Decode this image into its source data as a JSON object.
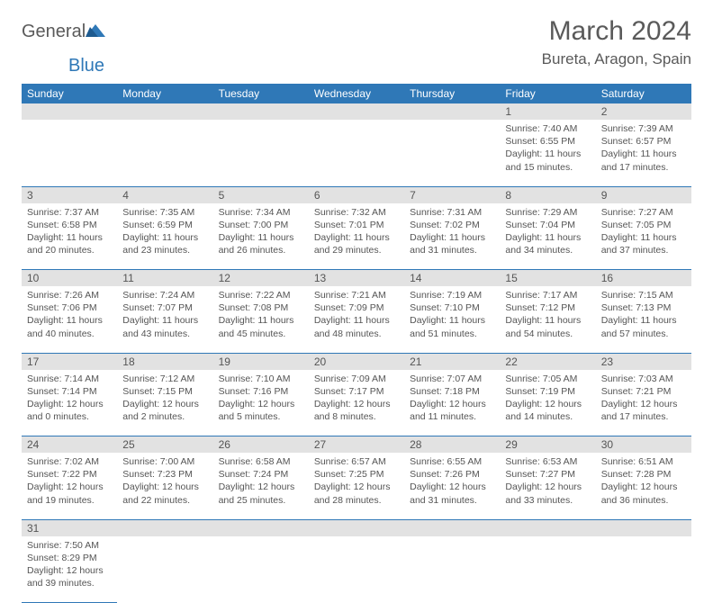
{
  "brand": {
    "part1": "General",
    "part2": "Blue"
  },
  "title": "March 2024",
  "location": "Bureta, Aragon, Spain",
  "colors": {
    "header_bg": "#2f78b7",
    "header_text": "#ffffff",
    "daynum_bg": "#e2e2e2",
    "text": "#555555",
    "border": "#2f78b7"
  },
  "weekdays": [
    "Sunday",
    "Monday",
    "Tuesday",
    "Wednesday",
    "Thursday",
    "Friday",
    "Saturday"
  ],
  "weeks": [
    [
      null,
      null,
      null,
      null,
      null,
      {
        "n": "1",
        "sr": "Sunrise: 7:40 AM",
        "ss": "Sunset: 6:55 PM",
        "d1": "Daylight: 11 hours",
        "d2": "and 15 minutes."
      },
      {
        "n": "2",
        "sr": "Sunrise: 7:39 AM",
        "ss": "Sunset: 6:57 PM",
        "d1": "Daylight: 11 hours",
        "d2": "and 17 minutes."
      }
    ],
    [
      {
        "n": "3",
        "sr": "Sunrise: 7:37 AM",
        "ss": "Sunset: 6:58 PM",
        "d1": "Daylight: 11 hours",
        "d2": "and 20 minutes."
      },
      {
        "n": "4",
        "sr": "Sunrise: 7:35 AM",
        "ss": "Sunset: 6:59 PM",
        "d1": "Daylight: 11 hours",
        "d2": "and 23 minutes."
      },
      {
        "n": "5",
        "sr": "Sunrise: 7:34 AM",
        "ss": "Sunset: 7:00 PM",
        "d1": "Daylight: 11 hours",
        "d2": "and 26 minutes."
      },
      {
        "n": "6",
        "sr": "Sunrise: 7:32 AM",
        "ss": "Sunset: 7:01 PM",
        "d1": "Daylight: 11 hours",
        "d2": "and 29 minutes."
      },
      {
        "n": "7",
        "sr": "Sunrise: 7:31 AM",
        "ss": "Sunset: 7:02 PM",
        "d1": "Daylight: 11 hours",
        "d2": "and 31 minutes."
      },
      {
        "n": "8",
        "sr": "Sunrise: 7:29 AM",
        "ss": "Sunset: 7:04 PM",
        "d1": "Daylight: 11 hours",
        "d2": "and 34 minutes."
      },
      {
        "n": "9",
        "sr": "Sunrise: 7:27 AM",
        "ss": "Sunset: 7:05 PM",
        "d1": "Daylight: 11 hours",
        "d2": "and 37 minutes."
      }
    ],
    [
      {
        "n": "10",
        "sr": "Sunrise: 7:26 AM",
        "ss": "Sunset: 7:06 PM",
        "d1": "Daylight: 11 hours",
        "d2": "and 40 minutes."
      },
      {
        "n": "11",
        "sr": "Sunrise: 7:24 AM",
        "ss": "Sunset: 7:07 PM",
        "d1": "Daylight: 11 hours",
        "d2": "and 43 minutes."
      },
      {
        "n": "12",
        "sr": "Sunrise: 7:22 AM",
        "ss": "Sunset: 7:08 PM",
        "d1": "Daylight: 11 hours",
        "d2": "and 45 minutes."
      },
      {
        "n": "13",
        "sr": "Sunrise: 7:21 AM",
        "ss": "Sunset: 7:09 PM",
        "d1": "Daylight: 11 hours",
        "d2": "and 48 minutes."
      },
      {
        "n": "14",
        "sr": "Sunrise: 7:19 AM",
        "ss": "Sunset: 7:10 PM",
        "d1": "Daylight: 11 hours",
        "d2": "and 51 minutes."
      },
      {
        "n": "15",
        "sr": "Sunrise: 7:17 AM",
        "ss": "Sunset: 7:12 PM",
        "d1": "Daylight: 11 hours",
        "d2": "and 54 minutes."
      },
      {
        "n": "16",
        "sr": "Sunrise: 7:15 AM",
        "ss": "Sunset: 7:13 PM",
        "d1": "Daylight: 11 hours",
        "d2": "and 57 minutes."
      }
    ],
    [
      {
        "n": "17",
        "sr": "Sunrise: 7:14 AM",
        "ss": "Sunset: 7:14 PM",
        "d1": "Daylight: 12 hours",
        "d2": "and 0 minutes."
      },
      {
        "n": "18",
        "sr": "Sunrise: 7:12 AM",
        "ss": "Sunset: 7:15 PM",
        "d1": "Daylight: 12 hours",
        "d2": "and 2 minutes."
      },
      {
        "n": "19",
        "sr": "Sunrise: 7:10 AM",
        "ss": "Sunset: 7:16 PM",
        "d1": "Daylight: 12 hours",
        "d2": "and 5 minutes."
      },
      {
        "n": "20",
        "sr": "Sunrise: 7:09 AM",
        "ss": "Sunset: 7:17 PM",
        "d1": "Daylight: 12 hours",
        "d2": "and 8 minutes."
      },
      {
        "n": "21",
        "sr": "Sunrise: 7:07 AM",
        "ss": "Sunset: 7:18 PM",
        "d1": "Daylight: 12 hours",
        "d2": "and 11 minutes."
      },
      {
        "n": "22",
        "sr": "Sunrise: 7:05 AM",
        "ss": "Sunset: 7:19 PM",
        "d1": "Daylight: 12 hours",
        "d2": "and 14 minutes."
      },
      {
        "n": "23",
        "sr": "Sunrise: 7:03 AM",
        "ss": "Sunset: 7:21 PM",
        "d1": "Daylight: 12 hours",
        "d2": "and 17 minutes."
      }
    ],
    [
      {
        "n": "24",
        "sr": "Sunrise: 7:02 AM",
        "ss": "Sunset: 7:22 PM",
        "d1": "Daylight: 12 hours",
        "d2": "and 19 minutes."
      },
      {
        "n": "25",
        "sr": "Sunrise: 7:00 AM",
        "ss": "Sunset: 7:23 PM",
        "d1": "Daylight: 12 hours",
        "d2": "and 22 minutes."
      },
      {
        "n": "26",
        "sr": "Sunrise: 6:58 AM",
        "ss": "Sunset: 7:24 PM",
        "d1": "Daylight: 12 hours",
        "d2": "and 25 minutes."
      },
      {
        "n": "27",
        "sr": "Sunrise: 6:57 AM",
        "ss": "Sunset: 7:25 PM",
        "d1": "Daylight: 12 hours",
        "d2": "and 28 minutes."
      },
      {
        "n": "28",
        "sr": "Sunrise: 6:55 AM",
        "ss": "Sunset: 7:26 PM",
        "d1": "Daylight: 12 hours",
        "d2": "and 31 minutes."
      },
      {
        "n": "29",
        "sr": "Sunrise: 6:53 AM",
        "ss": "Sunset: 7:27 PM",
        "d1": "Daylight: 12 hours",
        "d2": "and 33 minutes."
      },
      {
        "n": "30",
        "sr": "Sunrise: 6:51 AM",
        "ss": "Sunset: 7:28 PM",
        "d1": "Daylight: 12 hours",
        "d2": "and 36 minutes."
      }
    ],
    [
      {
        "n": "31",
        "sr": "Sunrise: 7:50 AM",
        "ss": "Sunset: 8:29 PM",
        "d1": "Daylight: 12 hours",
        "d2": "and 39 minutes."
      },
      null,
      null,
      null,
      null,
      null,
      null
    ]
  ]
}
